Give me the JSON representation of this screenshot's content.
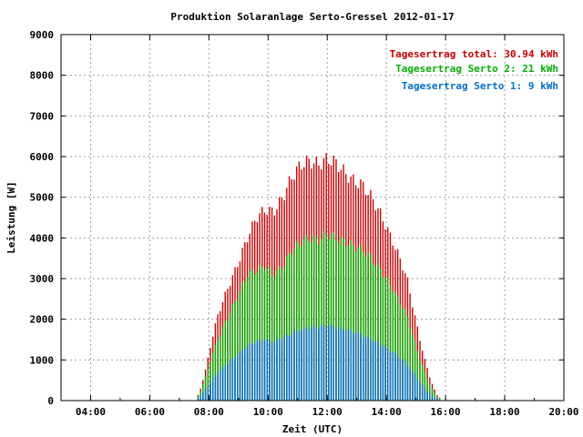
{
  "chart_data": {
    "type": "bar",
    "title": "Produktion Solaranlage Serto-Gressel 2012-01-17",
    "xlabel": "Zeit (UTC)",
    "ylabel": "Leistung [W]",
    "xlim_hours": [
      3,
      20
    ],
    "ylim": [
      0,
      9000
    ],
    "x_ticks": [
      "04:00",
      "06:00",
      "08:00",
      "10:00",
      "12:00",
      "14:00",
      "16:00",
      "18:00",
      "20:00"
    ],
    "y_ticks": [
      "0",
      "1000",
      "2000",
      "3000",
      "4000",
      "5000",
      "6000",
      "7000",
      "8000",
      "9000"
    ],
    "grid": true,
    "legend_position": "top-right",
    "sample_interval_minutes": 5,
    "series": [
      {
        "name": "Tagesertrag total: 30.94 kWh",
        "color": "#cc0000",
        "anchors": [
          [
            7.55,
            0
          ],
          [
            7.7,
            250
          ],
          [
            7.9,
            800
          ],
          [
            8.1,
            1500
          ],
          [
            8.3,
            2100
          ],
          [
            8.6,
            2700
          ],
          [
            9.0,
            3400
          ],
          [
            9.3,
            4000
          ],
          [
            9.6,
            4500
          ],
          [
            9.9,
            4700
          ],
          [
            10.2,
            4650
          ],
          [
            10.5,
            5000
          ],
          [
            10.8,
            5500
          ],
          [
            11.1,
            5800
          ],
          [
            11.4,
            5900
          ],
          [
            11.7,
            5800
          ],
          [
            12.0,
            5950
          ],
          [
            12.3,
            5850
          ],
          [
            12.6,
            5600
          ],
          [
            12.9,
            5400
          ],
          [
            13.2,
            5300
          ],
          [
            13.5,
            5000
          ],
          [
            13.8,
            4600
          ],
          [
            14.1,
            4100
          ],
          [
            14.4,
            3600
          ],
          [
            14.7,
            3000
          ],
          [
            14.9,
            2300
          ],
          [
            15.1,
            1600
          ],
          [
            15.3,
            1000
          ],
          [
            15.5,
            500
          ],
          [
            15.7,
            150
          ],
          [
            15.9,
            0
          ]
        ]
      },
      {
        "name": "Tagesertrag Serto 2: 21 kWh",
        "color": "#00b000",
        "anchors": [
          [
            7.55,
            0
          ],
          [
            7.7,
            200
          ],
          [
            7.9,
            600
          ],
          [
            8.1,
            1100
          ],
          [
            8.3,
            1500
          ],
          [
            8.6,
            2000
          ],
          [
            9.0,
            2600
          ],
          [
            9.3,
            3100
          ],
          [
            9.6,
            3200
          ],
          [
            9.9,
            3300
          ],
          [
            10.2,
            3100
          ],
          [
            10.5,
            3300
          ],
          [
            10.8,
            3700
          ],
          [
            11.1,
            3900
          ],
          [
            11.4,
            4000
          ],
          [
            11.7,
            3950
          ],
          [
            12.0,
            4100
          ],
          [
            12.3,
            4000
          ],
          [
            12.6,
            3900
          ],
          [
            12.9,
            3800
          ],
          [
            13.2,
            3700
          ],
          [
            13.5,
            3500
          ],
          [
            13.8,
            3200
          ],
          [
            14.1,
            2900
          ],
          [
            14.4,
            2500
          ],
          [
            14.7,
            2100
          ],
          [
            14.9,
            1600
          ],
          [
            15.1,
            1100
          ],
          [
            15.3,
            700
          ],
          [
            15.5,
            350
          ],
          [
            15.7,
            100
          ],
          [
            15.9,
            0
          ]
        ]
      },
      {
        "name": "Tagesertrag Serto 1: 9 kWh",
        "color": "#0070d0",
        "anchors": [
          [
            7.55,
            0
          ],
          [
            7.7,
            100
          ],
          [
            7.9,
            300
          ],
          [
            8.1,
            500
          ],
          [
            8.3,
            700
          ],
          [
            8.6,
            900
          ],
          [
            9.0,
            1150
          ],
          [
            9.3,
            1350
          ],
          [
            9.6,
            1450
          ],
          [
            9.9,
            1500
          ],
          [
            10.2,
            1450
          ],
          [
            10.5,
            1550
          ],
          [
            10.8,
            1650
          ],
          [
            11.1,
            1750
          ],
          [
            11.4,
            1800
          ],
          [
            11.7,
            1800
          ],
          [
            12.0,
            1850
          ],
          [
            12.3,
            1800
          ],
          [
            12.6,
            1750
          ],
          [
            12.9,
            1700
          ],
          [
            13.2,
            1600
          ],
          [
            13.5,
            1500
          ],
          [
            13.8,
            1400
          ],
          [
            14.1,
            1250
          ],
          [
            14.4,
            1100
          ],
          [
            14.7,
            900
          ],
          [
            14.9,
            700
          ],
          [
            15.1,
            500
          ],
          [
            15.3,
            300
          ],
          [
            15.5,
            150
          ],
          [
            15.7,
            50
          ],
          [
            15.9,
            0
          ]
        ]
      }
    ]
  }
}
